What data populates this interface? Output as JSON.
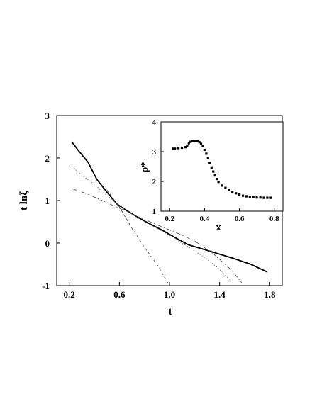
{
  "chart_data": [
    {
      "type": "line",
      "xlabel": "t",
      "ylabel": "t lnξ",
      "xlim": [
        0.1,
        1.9
      ],
      "ylim": [
        -1,
        3
      ],
      "x_ticks": [
        "0.2",
        "0.6",
        "1.0",
        "1.4",
        "1.8"
      ],
      "y_ticks": [
        "-1",
        "0",
        "1",
        "2",
        "3"
      ],
      "series": [
        {
          "style": "solid",
          "stroke": "#000000",
          "x": [
            0.22,
            0.28,
            0.35,
            0.42,
            0.5,
            0.58,
            0.65,
            0.75,
            0.85,
            0.95,
            1.05,
            1.15,
            1.3,
            1.5,
            1.65,
            1.78
          ],
          "y": [
            2.38,
            2.15,
            1.9,
            1.5,
            1.2,
            0.92,
            0.78,
            0.6,
            0.44,
            0.29,
            0.12,
            -0.04,
            -0.17,
            -0.35,
            -0.5,
            -0.68
          ]
        },
        {
          "style": "dotted",
          "stroke": "#555555",
          "x": [
            0.22,
            0.3,
            0.4,
            0.5,
            0.6,
            0.7,
            0.8,
            0.9,
            1.0,
            1.1,
            1.2,
            1.3,
            1.4,
            1.5
          ],
          "y": [
            1.8,
            1.6,
            1.38,
            1.12,
            0.88,
            0.68,
            0.5,
            0.35,
            0.18,
            0.0,
            -0.18,
            -0.38,
            -0.62,
            -0.92
          ]
        },
        {
          "style": "dashed",
          "stroke": "#555555",
          "x": [
            0.5,
            0.6,
            0.7,
            0.8,
            0.9,
            1.0
          ],
          "y": [
            1.25,
            0.85,
            0.35,
            -0.1,
            -0.5,
            -1.0
          ]
        },
        {
          "style": "dashdot",
          "stroke": "#555555",
          "x": [
            0.22,
            0.35,
            0.5,
            0.6,
            0.75,
            0.9,
            1.05,
            1.2,
            1.35,
            1.5,
            1.58
          ],
          "y": [
            1.28,
            1.15,
            0.95,
            0.82,
            0.62,
            0.43,
            0.25,
            0.05,
            -0.25,
            -0.65,
            -0.95
          ]
        }
      ]
    },
    {
      "type": "scatter",
      "xlabel": "x",
      "ylabel": "ρ*",
      "xlim": [
        0.15,
        0.85
      ],
      "ylim": [
        1,
        4
      ],
      "x_ticks": [
        "0.2",
        "0.4",
        "0.6",
        "0.8"
      ],
      "y_ticks": [
        "1",
        "2",
        "3",
        "4"
      ],
      "x": [
        0.22,
        0.23,
        0.25,
        0.27,
        0.29,
        0.3,
        0.31,
        0.32,
        0.33,
        0.34,
        0.35,
        0.36,
        0.37,
        0.38,
        0.39,
        0.4,
        0.41,
        0.42,
        0.43,
        0.44,
        0.45,
        0.46,
        0.47,
        0.48,
        0.5,
        0.52,
        0.54,
        0.56,
        0.58,
        0.6,
        0.62,
        0.64,
        0.66,
        0.68,
        0.7,
        0.72,
        0.74,
        0.76,
        0.78
      ],
      "y": [
        3.1,
        3.1,
        3.12,
        3.13,
        3.15,
        3.2,
        3.28,
        3.33,
        3.35,
        3.36,
        3.36,
        3.35,
        3.32,
        3.26,
        3.18,
        3.06,
        2.93,
        2.78,
        2.62,
        2.47,
        2.33,
        2.2,
        2.08,
        1.98,
        1.86,
        1.78,
        1.71,
        1.65,
        1.6,
        1.56,
        1.52,
        1.5,
        1.48,
        1.47,
        1.46,
        1.46,
        1.45,
        1.45,
        1.45
      ]
    }
  ]
}
